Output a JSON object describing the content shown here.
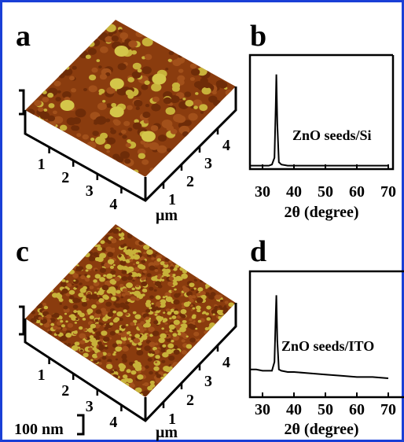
{
  "panels": [
    {
      "label": "a",
      "kind": "afm",
      "x_ticks": [
        1,
        2,
        3,
        4
      ],
      "y_ticks": [
        1,
        2,
        3,
        4
      ],
      "unit": "μm"
    },
    {
      "label": "b",
      "kind": "xrd",
      "annotation": "ZnO seeds/Si",
      "xlabel": "2θ (degree)",
      "xlim": [
        26,
        71.5
      ],
      "xticks": [
        30,
        40,
        50,
        60,
        70
      ],
      "ylim": [
        0,
        100
      ],
      "color": "#000000",
      "x": [
        26,
        28,
        30,
        32,
        33,
        33.8,
        34.2,
        34.4,
        34.7,
        35.2,
        36,
        38,
        40,
        45,
        50,
        55,
        60,
        65,
        70
      ],
      "values": [
        3,
        3,
        3,
        3,
        4,
        10,
        55,
        83,
        40,
        6,
        4,
        3,
        3,
        3,
        3,
        3,
        3,
        3,
        3
      ]
    },
    {
      "label": "c",
      "kind": "afm",
      "x_ticks": [
        1,
        2,
        3,
        4
      ],
      "y_ticks": [
        1,
        2,
        3,
        4
      ],
      "unit": "μm"
    },
    {
      "label": "d",
      "kind": "xrd",
      "annotation": "ZnO seeds/ITO",
      "xlabel": "2θ (degree)",
      "xlim": [
        26,
        71.5
      ],
      "xticks": [
        30,
        40,
        50,
        60,
        70
      ],
      "ylim": [
        0,
        100
      ],
      "color": "#000000",
      "x": [
        26,
        28,
        30,
        32,
        33,
        33.8,
        34.2,
        34.4,
        34.7,
        35.2,
        36,
        38,
        40,
        45,
        50,
        55,
        60,
        65,
        70
      ],
      "values": [
        22,
        22,
        21,
        21,
        21,
        28,
        65,
        81,
        45,
        22,
        21,
        20,
        20,
        19,
        18,
        17,
        16,
        16,
        15
      ]
    }
  ],
  "scale_bar": "100 nm"
}
